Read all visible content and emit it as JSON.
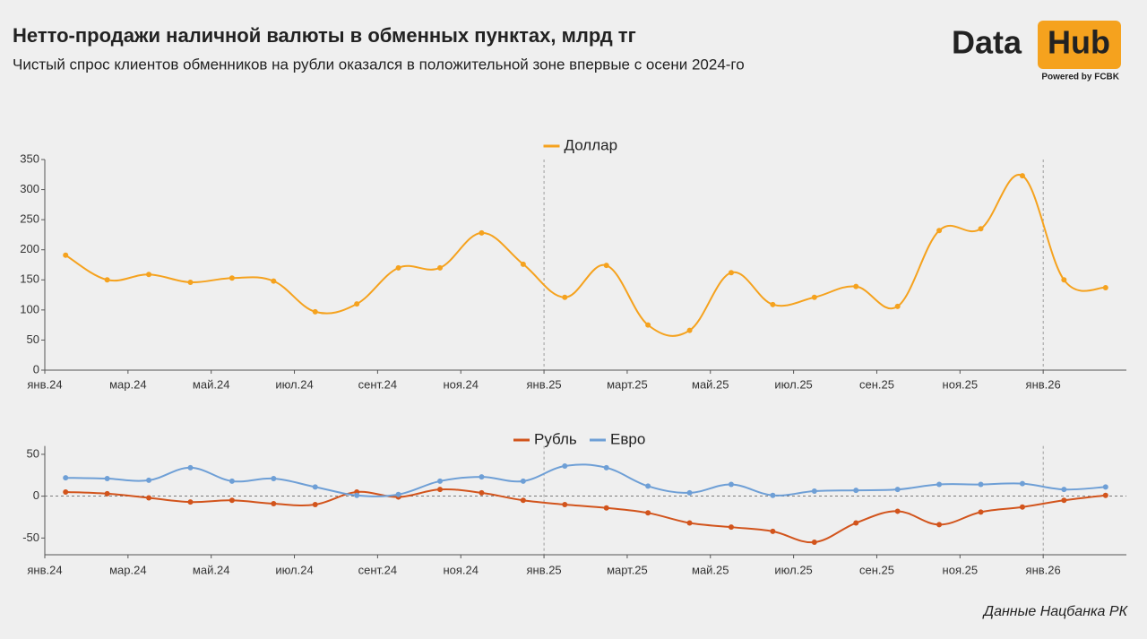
{
  "header": {
    "title": "Нетто-продажи наличной валюты в обменных пунктах, млрд тг",
    "subtitle": "Чистый спрос клиентов обменников на рубли оказался в положительной зоне впервые с осени 2024-го",
    "logo": {
      "left": "Data",
      "right": "Hub",
      "tagline": "Powered by FCBK"
    }
  },
  "footer": {
    "source": "Данные Нацбанка РК"
  },
  "chart_data": [
    {
      "type": "line",
      "categories": [
        "янв.24",
        null,
        "мар.24",
        null,
        "май.24",
        null,
        "июл.24",
        null,
        "сент.24",
        null,
        "ноя.24",
        null,
        "янв.25",
        null,
        "март.25",
        null,
        "май.25",
        null,
        "июл.25",
        null,
        "сен.25",
        null,
        "ноя.25",
        null,
        "янв.26",
        null
      ],
      "series": [
        {
          "name": "Доллар",
          "color": "#f5a21e",
          "values": [
            191,
            150,
            159,
            146,
            153,
            148,
            97,
            110,
            170,
            170,
            228,
            176,
            121,
            174,
            75,
            66,
            162,
            109,
            121,
            139,
            106,
            232,
            235,
            323,
            150,
            137
          ]
        }
      ],
      "ylim": [
        0,
        350
      ],
      "yticks": [
        0,
        50,
        100,
        150,
        200,
        250,
        300,
        350
      ],
      "legend": "top",
      "markers": true,
      "smooth": true
    },
    {
      "type": "line",
      "categories": [
        "янв.24",
        null,
        "мар.24",
        null,
        "май.24",
        null,
        "июл.24",
        null,
        "сент.24",
        null,
        "ноя.24",
        null,
        "янв.25",
        null,
        "март.25",
        null,
        "май.25",
        null,
        "июл.25",
        null,
        "сен.25",
        null,
        "ноя.25",
        null,
        "янв.26",
        null
      ],
      "series": [
        {
          "name": "Рубль",
          "color": "#d2541c",
          "values": [
            5,
            3,
            -2,
            -7,
            -5,
            -9,
            -10,
            5,
            -1,
            8,
            4,
            -5,
            -10,
            -14,
            -20,
            -32,
            -37,
            -42,
            -55,
            -32,
            -18,
            -34,
            -19,
            -13,
            -5,
            1
          ]
        },
        {
          "name": "Евро",
          "color": "#6e9fd6",
          "values": [
            22,
            21,
            19,
            34,
            18,
            21,
            11,
            1,
            2,
            18,
            23,
            18,
            36,
            34,
            12,
            4,
            14,
            1,
            6,
            7,
            8,
            14,
            14,
            15,
            8,
            11
          ]
        }
      ],
      "ylim": [
        -70,
        60
      ],
      "yticks": [
        -50,
        0,
        50
      ],
      "legend": "top",
      "markers": true,
      "smooth": true,
      "zero_line": true
    }
  ]
}
